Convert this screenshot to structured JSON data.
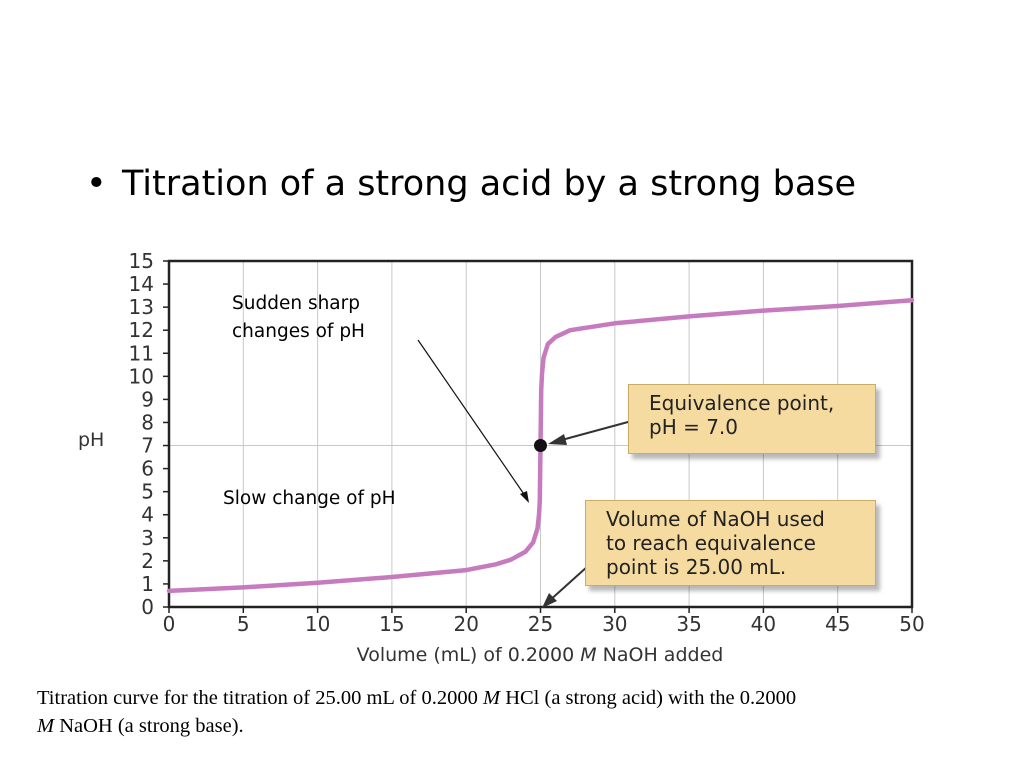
{
  "slide": {
    "bullet": "•",
    "title": "Titration of a strong acid by a strong base"
  },
  "chart_data": {
    "type": "line",
    "xlabel_before": "Volume (mL) of 0.2000 ",
    "xlabel_italic": "M",
    "xlabel_after": " NaOH added",
    "ylabel": "pH",
    "xlim": [
      0,
      50
    ],
    "ylim": [
      0,
      15
    ],
    "x_ticks": [
      "0",
      "5",
      "10",
      "15",
      "20",
      "25",
      "30",
      "35",
      "40",
      "45",
      "50"
    ],
    "y_ticks": [
      "0",
      "1",
      "2",
      "3",
      "4",
      "5",
      "6",
      "7",
      "8",
      "9",
      "10",
      "11",
      "12",
      "13",
      "14",
      "15"
    ],
    "grid": true,
    "line_color": "#c77bbf",
    "series": [
      {
        "x": [
          0,
          5,
          10,
          15,
          20,
          22,
          23,
          24,
          24.5,
          24.8,
          24.9,
          24.95,
          25,
          25.05,
          25.1,
          25.2,
          25.5,
          26,
          27,
          30,
          35,
          40,
          45,
          50
        ],
        "y": [
          0.7,
          0.85,
          1.05,
          1.3,
          1.6,
          1.85,
          2.05,
          2.4,
          2.8,
          3.4,
          4.0,
          4.6,
          7.0,
          9.4,
          10.1,
          10.8,
          11.4,
          11.7,
          12.0,
          12.3,
          12.6,
          12.85,
          13.05,
          13.3
        ]
      }
    ],
    "equivalence_point": {
      "x": 25,
      "y": 7
    },
    "annotations": {
      "sharp_line1": "Sudden sharp",
      "sharp_line2": "changes of pH",
      "slow": "Slow change of pH",
      "eq_line1": "Equivalence point,",
      "eq_line2": "pH = 7.0",
      "vol_line1": "Volume of NaOH used",
      "vol_line2": "to reach equivalence",
      "vol_line3": "point is 25.00 mL."
    },
    "colors": {
      "callout_bg": "#f6dba0",
      "grid": "#c8c8c8"
    }
  },
  "caption": {
    "part1": "Titration curve for the titration of 25.00 mL of 0.2000 ",
    "italic1": "M",
    "part2": " HCl (a strong acid) with the 0.2000",
    "italic2": "M",
    "part3": " NaOH (a strong base)."
  }
}
